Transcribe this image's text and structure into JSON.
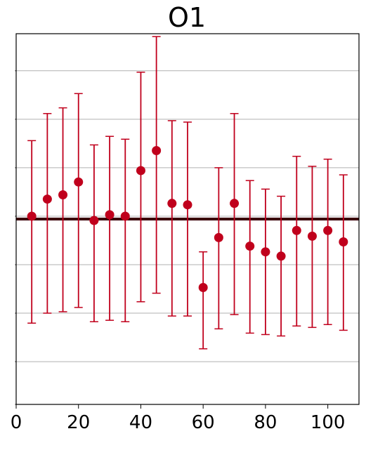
{
  "chart_data": {
    "type": "scatter",
    "title": "O1",
    "xlabel": "",
    "ylabel": "",
    "xlim": [
      0,
      110
    ],
    "ylim": [
      -1.3,
      1.3
    ],
    "x_ticks": [
      0,
      20,
      40,
      60,
      80,
      100
    ],
    "x_tick_labels": [
      "0",
      "20",
      "40",
      "60",
      "80",
      "100"
    ],
    "y_ticks": [
      -1.0,
      -0.66,
      -0.32,
      0.02,
      0.36,
      0.7,
      1.04
    ],
    "y_tick_labels_visible": false,
    "grid": "horizontal",
    "reference_line": {
      "y": 0.0,
      "color": "#3a0008"
    },
    "series": [
      {
        "color": "#c0001c",
        "x": [
          5,
          10,
          15,
          20,
          25,
          30,
          35,
          40,
          45,
          50,
          55,
          60,
          65,
          70,
          75,
          80,
          85,
          90,
          95,
          100,
          105
        ],
        "y": [
          0.02,
          0.14,
          0.17,
          0.26,
          -0.01,
          0.03,
          0.02,
          0.34,
          0.48,
          0.11,
          0.1,
          -0.48,
          -0.13,
          0.11,
          -0.19,
          -0.23,
          -0.26,
          -0.08,
          -0.12,
          -0.08,
          -0.16
        ],
        "err_low": [
          -0.73,
          -0.66,
          -0.65,
          -0.62,
          -0.72,
          -0.71,
          -0.72,
          -0.58,
          -0.52,
          -0.68,
          -0.68,
          -0.91,
          -0.77,
          -0.67,
          -0.8,
          -0.81,
          -0.82,
          -0.75,
          -0.76,
          -0.74,
          -0.78
        ],
        "err_high": [
          0.55,
          0.74,
          0.78,
          0.88,
          0.52,
          0.58,
          0.56,
          1.03,
          1.28,
          0.69,
          0.68,
          -0.23,
          0.36,
          0.74,
          0.27,
          0.21,
          0.16,
          0.44,
          0.37,
          0.42,
          0.31
        ]
      }
    ]
  }
}
